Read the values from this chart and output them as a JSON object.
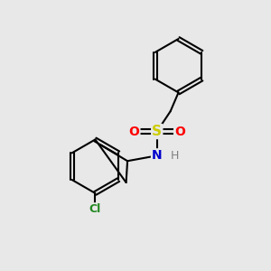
{
  "background_color": "#e8e8e8",
  "bond_color": "#000000",
  "bond_width": 1.5,
  "figsize": [
    3.0,
    3.0
  ],
  "dpi": 100,
  "atoms": {
    "S": {
      "color": "#cccc00",
      "fontsize": 11,
      "fontweight": "bold"
    },
    "O": {
      "color": "#ff0000",
      "fontsize": 10,
      "fontweight": "bold"
    },
    "N": {
      "color": "#0000cc",
      "fontsize": 10,
      "fontweight": "bold"
    },
    "H": {
      "color": "#808080",
      "fontsize": 9,
      "fontweight": "normal"
    },
    "Cl": {
      "color": "#228822",
      "fontsize": 9,
      "fontweight": "bold"
    }
  }
}
